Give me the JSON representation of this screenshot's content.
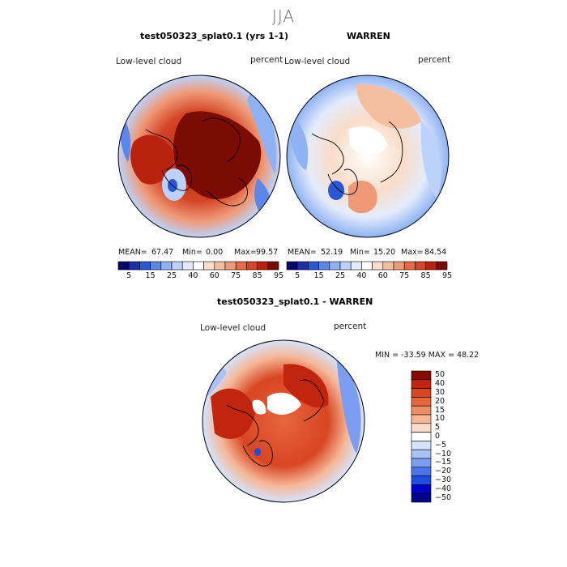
{
  "season": "JJA",
  "colorbar_colors": {
    "abs": [
      "#08066e",
      "#1a2fa8",
      "#2a57d8",
      "#5b87ea",
      "#8fb2f4",
      "#bcd2fa",
      "#e4ecfb",
      "#ffffff",
      "#f9ddc8",
      "#f5bf9f",
      "#ef9a77",
      "#e66b47",
      "#d44526",
      "#b8220f",
      "#7b0b05"
    ],
    "diff": [
      "#00008b",
      "#0000cd",
      "#1e4fe0",
      "#4a74ee",
      "#7b9df2",
      "#a9c3f8",
      "#d5e3fc",
      "#ffffff",
      "#fbdccb",
      "#f5b797",
      "#ee8e64",
      "#e6663e",
      "#d84522",
      "#c1250d",
      "#8b0a00"
    ]
  },
  "panels": {
    "model": {
      "title": "test050323_splat0.1 (yrs 1-1)",
      "field": "Low-level cloud",
      "units": "percent",
      "mean_label": "MEAN=",
      "mean": "67.47",
      "min_label": "Min=",
      "min": "0.00",
      "max_label": "Max=",
      "max": "99.57"
    },
    "obs": {
      "title": "WARREN",
      "field": "Low-level cloud",
      "units": "percent",
      "mean_label": "MEAN=",
      "mean": "52.19",
      "min_label": "Min=",
      "min": "15.20",
      "max_label": "Max=",
      "max": "84.54"
    },
    "diff": {
      "title": "test050323_splat0.1 - WARREN",
      "field": "Low-level cloud",
      "units": "percent",
      "range_text": "MIN = -33.59 MAX =  48.22"
    }
  },
  "chart_data": [
    {
      "type": "heatmap",
      "projection": "north-polar-stereographic",
      "title": "test050323_splat0.1 (yrs 1-1)",
      "variable": "Low-level cloud",
      "units": "percent",
      "stats": {
        "mean": 67.47,
        "min": 0.0,
        "max": 99.57
      },
      "colorbar_ticks": [
        "5",
        "15",
        "25",
        "40",
        "60",
        "75",
        "85",
        "95"
      ]
    },
    {
      "type": "heatmap",
      "projection": "north-polar-stereographic",
      "title": "WARREN",
      "variable": "Low-level cloud",
      "units": "percent",
      "stats": {
        "mean": 52.19,
        "min": 15.2,
        "max": 84.54
      },
      "colorbar_ticks": [
        "5",
        "15",
        "25",
        "40",
        "60",
        "75",
        "85",
        "95"
      ]
    },
    {
      "type": "heatmap",
      "projection": "north-polar-stereographic",
      "title": "test050323_splat0.1 - WARREN",
      "variable": "Low-level cloud",
      "units": "percent",
      "stats": {
        "min": -33.59,
        "max": 48.22
      },
      "colorbar_ticks": [
        "50",
        "40",
        "30",
        "20",
        "15",
        "10",
        "5",
        "0",
        "−5",
        "−10",
        "−15",
        "−20",
        "−30",
        "−40",
        "−50"
      ]
    }
  ]
}
